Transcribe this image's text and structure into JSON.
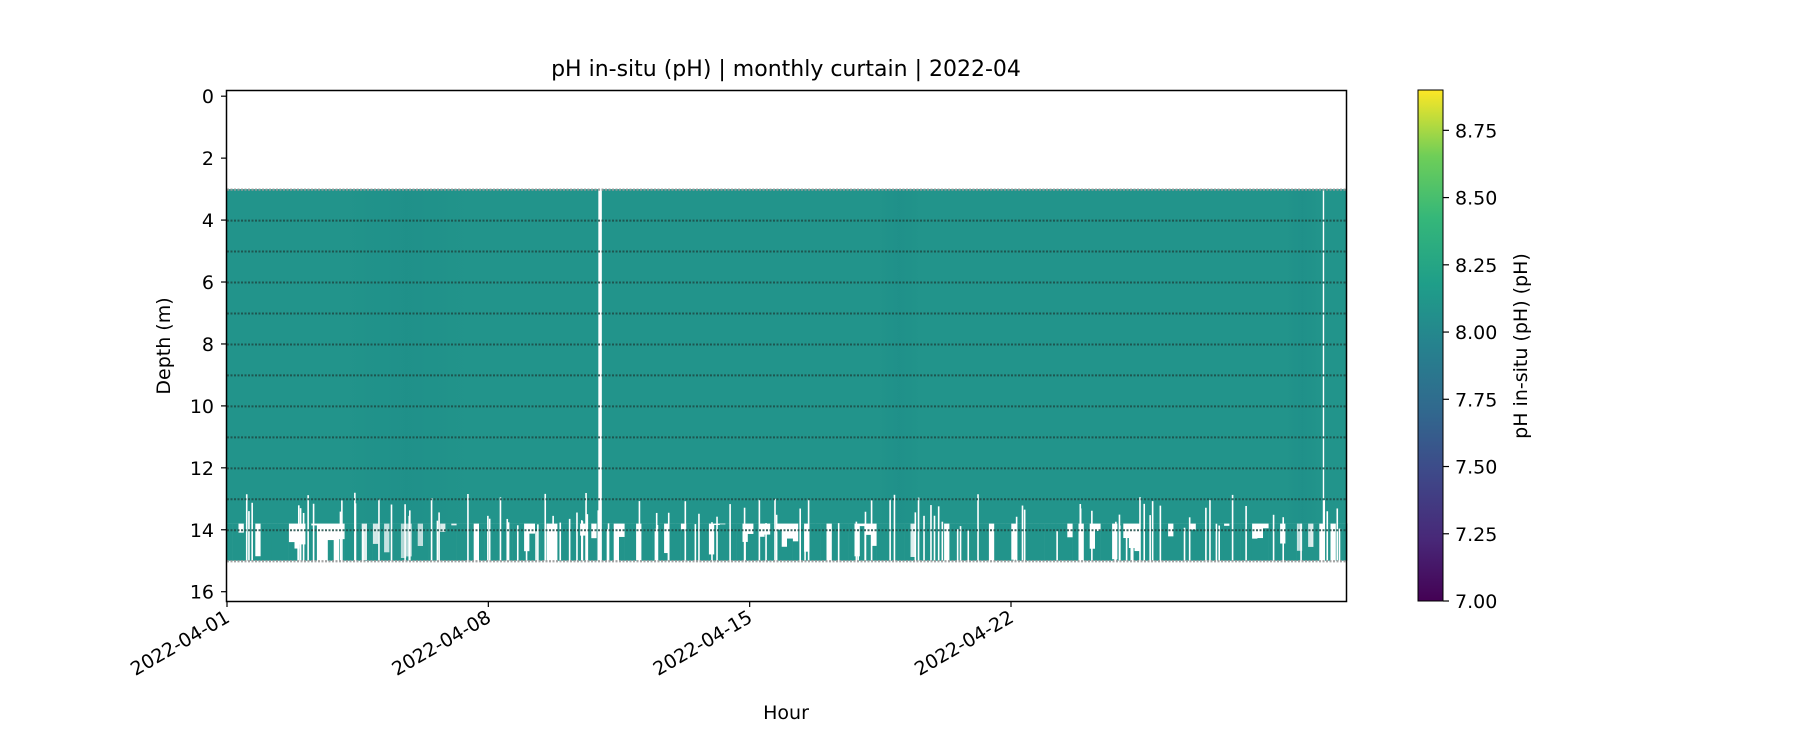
{
  "chart_data": {
    "type": "heatmap",
    "title": "pH in-situ (pH) | monthly curtain | 2022-04",
    "xlabel": "Hour",
    "ylabel": "Depth (m)",
    "x_range": [
      "2022-04-01",
      "2022-04-30"
    ],
    "x_ticks": [
      "2022-04-01",
      "2022-04-08",
      "2022-04-15",
      "2022-04-22"
    ],
    "y_range": [
      16.3,
      -0.2
    ],
    "y_inverted": true,
    "y_ticks": [
      0,
      2,
      4,
      6,
      8,
      10,
      12,
      14,
      16
    ],
    "colormap": "viridis",
    "colorbar": {
      "label": "pH in-situ (pH) (pH)",
      "range": [
        7.0,
        8.9
      ],
      "ticks": [
        "7.00",
        "7.25",
        "7.50",
        "7.75",
        "8.00",
        "8.25",
        "8.50",
        "8.75"
      ]
    },
    "data_extent": {
      "depth_top": 3,
      "depth_bottom": 15
    },
    "sensor_depths": [
      3,
      4,
      5,
      6,
      7,
      8,
      9,
      10,
      11,
      12,
      13,
      14,
      15
    ],
    "typical_value": 8.1,
    "data_gaps": [
      "2022-04-11"
    ],
    "grid": false
  }
}
